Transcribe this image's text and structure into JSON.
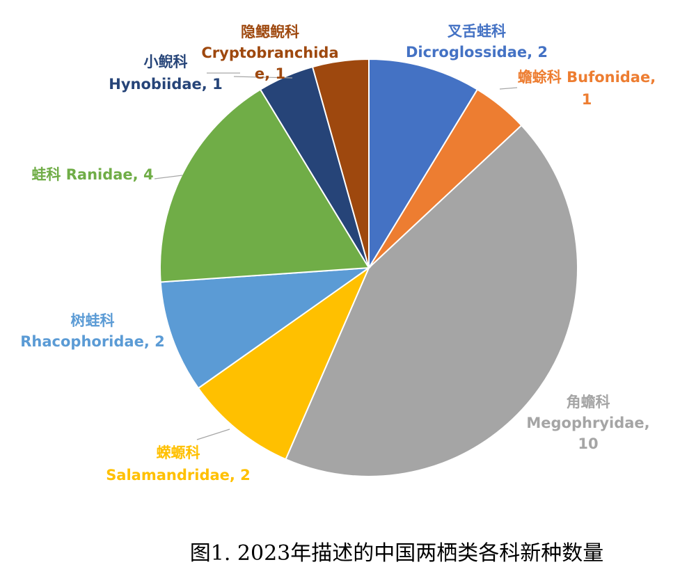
{
  "chart_data": {
    "type": "pie",
    "title": "",
    "slices": [
      {
        "lines": [
          "叉舌蛙科",
          "Dicroglossidae, 2"
        ],
        "name": "叉舌蛙科 Dicroglossidae",
        "value": 2,
        "color": "#4472C4"
      },
      {
        "lines": [
          "蟾蜍科 Bufonidae,",
          "1"
        ],
        "name": "蟾蜍科 Bufonidae",
        "value": 1,
        "color": "#ED7D31"
      },
      {
        "lines": [
          "角蟾科",
          "Megophryidae,",
          "10"
        ],
        "name": "角蟾科 Megophryidae",
        "value": 10,
        "color": "#A5A5A5"
      },
      {
        "lines": [
          "蝾螈科",
          "Salamandridae, 2"
        ],
        "name": "蝾螈科 Salamandridae",
        "value": 2,
        "color": "#FFC000"
      },
      {
        "lines": [
          "树蛙科",
          "Rhacophoridae, 2"
        ],
        "name": "树蛙科 Rhacophoridae",
        "value": 2,
        "color": "#5B9BD5"
      },
      {
        "lines": [
          "蛙科 Ranidae, 4"
        ],
        "name": "蛙科 Ranidae",
        "value": 4,
        "color": "#70AD47"
      },
      {
        "lines": [
          "小鲵科",
          "Hynobiidae, 1"
        ],
        "name": "小鲵科 Hynobiidae",
        "value": 1,
        "color": "#264478"
      },
      {
        "lines": [
          "隐鳃鲵科",
          "Cryptobranchida",
          "e, 1"
        ],
        "name": "隐鳃鲵科 Cryptobranchidae",
        "value": 1,
        "color": "#9E480E"
      }
    ]
  },
  "caption": "图1. 2023年描述的中国两栖类各科新种数量"
}
